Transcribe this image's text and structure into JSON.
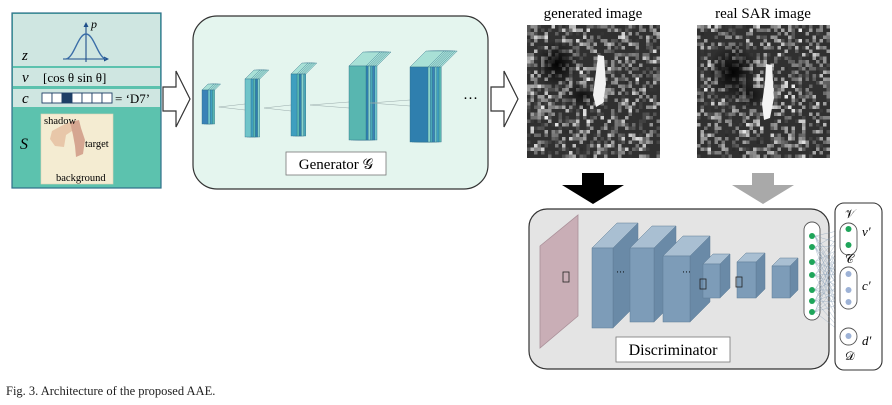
{
  "figure": {
    "caption": "Fig. 3.   Architecture of the proposed AAE."
  },
  "input_panel": {
    "z": {
      "symbol": "z",
      "axis_label": "p"
    },
    "v": {
      "symbol": "v",
      "expression": "[cos θ   sin θ]"
    },
    "c": {
      "symbol": "c",
      "code_cells": 7,
      "active_cell": 2,
      "equals_label": "= ‘D7’"
    },
    "s": {
      "symbol": "S",
      "labels": {
        "shadow": "shadow",
        "target": "target",
        "background": "background"
      }
    }
  },
  "generator": {
    "label": "Generator 𝒢",
    "ellipsis": "···"
  },
  "images": {
    "generated_title": "generated image",
    "real_title": "real SAR image"
  },
  "discriminator": {
    "label": "Discriminator",
    "ellipsis": "···",
    "outputs": [
      {
        "set": "𝒱",
        "value": "v′"
      },
      {
        "set": "𝒞",
        "value": "c′"
      },
      {
        "set": "𝒟",
        "value": "d′"
      }
    ]
  },
  "colors": {
    "teal_fill": "#5cc2ae",
    "teal_band": "#cfe6e1",
    "generator_bg": "#e4f5ee",
    "discriminator_bg": "#e4e4e4",
    "layer_blue": "#7d9cb8",
    "node_green": "#1fa55a",
    "node_blue": "#9db2d6",
    "arrow_black": "#000000",
    "arrow_gray": "#a9a9a9"
  }
}
